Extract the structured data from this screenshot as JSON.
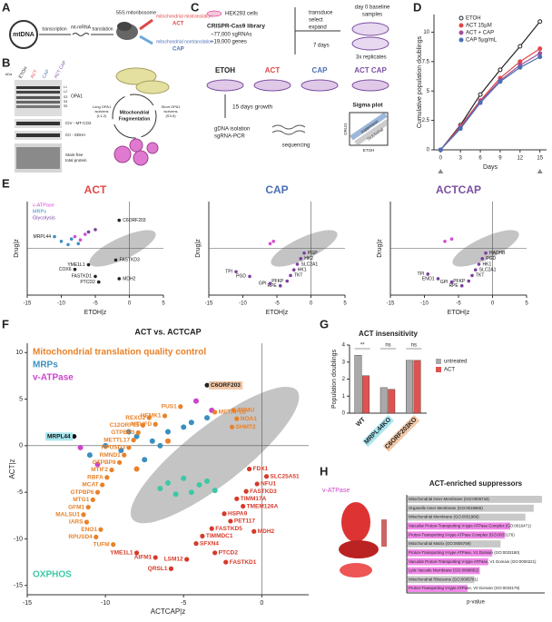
{
  "panel_labels": [
    "A",
    "B",
    "C",
    "D",
    "E",
    "F",
    "G",
    "H"
  ],
  "panel_a": {
    "mtdna": "mtDNA",
    "transcription": "transcription",
    "mrna": "mt-mRNA",
    "translation": "translation",
    "ribosome": "55S mitoribosome",
    "mistranslation": "mitochondrial mistranslation",
    "act": "ACT",
    "nontranslation": "mitochondrial nontranslation",
    "cap": "CAP"
  },
  "panel_b": {
    "lanes": [
      "ETOH",
      "ACT",
      "CAP",
      "ACT CAP"
    ],
    "kda": "kDa",
    "isoforms": [
      "L1",
      "L2",
      "S3",
      "S4",
      "S5"
    ],
    "blots": [
      "OPA1",
      "CIV - MT-CO2",
      "CII - SDHA"
    ],
    "stain": [
      "Stain-free",
      "total protein"
    ],
    "fragmentation": [
      "Mitochondrial",
      "Fragmentation"
    ],
    "long": [
      "Long OPA1",
      "isoforms",
      "(L1-2)"
    ],
    "short": [
      "Short OPA1",
      "isoforms",
      "(S3-5)"
    ]
  },
  "panel_c": {
    "cells": "HEK293 cells",
    "library": "CRISPR-Cas9 library",
    "sgrnas": "~77,000 sgRNAs",
    "genes": "~19,000 genes",
    "steps": [
      "transduce",
      "select",
      "expand"
    ],
    "days7": "7 days",
    "baseline": [
      "day 0 baseline",
      "samples"
    ],
    "replicates": "3x replicates",
    "arms": [
      "ETOH",
      "ACT",
      "CAP",
      "ACT CAP"
    ],
    "growth": "15 days growth",
    "isolation": [
      "gDNA isolation",
      "sgRNA-PCR"
    ],
    "sequencing": "sequencing",
    "sigma": "Sigma plot",
    "suppressor": "suppressor",
    "lethal": "Sick/lethal",
    "drug": "DRUG",
    "etoh": "ETOH"
  },
  "chart_data": [
    {
      "type": "line",
      "xlabel": "Days",
      "ylabel": "Cumulative population doublings",
      "x": [
        0,
        3,
        6,
        9,
        12,
        15
      ],
      "xlim": [
        -1,
        16
      ],
      "xticks": [
        0,
        3,
        6,
        9,
        12,
        15
      ],
      "ylim": [
        0,
        11.5
      ],
      "yticks": [
        0,
        2.5,
        5,
        7.5,
        10
      ],
      "legend": "upper left",
      "series": [
        {
          "name": "ETOH",
          "color": "#222222",
          "fill": "#ffffff",
          "values": [
            0,
            2.1,
            4.7,
            6.8,
            8.8,
            10.9
          ]
        },
        {
          "name": "ACT 15µM",
          "color": "#e04848",
          "values": [
            0,
            2.0,
            4.2,
            6.1,
            7.5,
            8.6
          ]
        },
        {
          "name": "ACT + CAP",
          "color": "#a0509a",
          "values": [
            0,
            1.9,
            4.1,
            5.9,
            7.2,
            8.2
          ]
        },
        {
          "name": "CAP 5µg/mL",
          "color": "#4a6fb5",
          "values": [
            0,
            1.8,
            4.0,
            5.8,
            7.0,
            7.9
          ]
        }
      ]
    },
    {
      "type": "scatter",
      "title": "ACT",
      "title_color": "#e04848",
      "xlabel": "ETOH|z",
      "ylabel": "Drug|z",
      "xlim": [
        -15,
        5
      ],
      "xticks": [
        -15,
        -10,
        -5,
        0,
        5
      ],
      "ylim": [
        -10,
        10
      ],
      "label_color": "#111111",
      "cloud_color": "#c4c4c4",
      "legend": "upper left",
      "series": [
        {
          "name": "v-ATPase",
          "color": "#d44bd4",
          "x": [
            -8,
            -7.2,
            -6.5
          ],
          "values": [
            2.5,
            1.8,
            3
          ]
        },
        {
          "name": "MRPs",
          "color": "#3a8fc1",
          "x": [
            -10,
            -9,
            -8.5,
            -7.5
          ],
          "values": [
            1.5,
            0.8,
            2,
            1
          ]
        },
        {
          "name": "Glycolysis",
          "color": "#7b3fa0",
          "x": [
            -6,
            -5
          ],
          "values": [
            3.5,
            4
          ]
        }
      ],
      "annotations": [
        {
          "text": "C6ORF203",
          "x": -1.5,
          "y": 6,
          "color": "#222222"
        },
        {
          "text": "MRPL44",
          "x": -11,
          "y": 2.5,
          "color": "#3a8fc1"
        },
        {
          "text": "FASTKD3",
          "x": -2,
          "y": -2.5,
          "color": "#222222"
        },
        {
          "text": "YME1L1",
          "x": -6,
          "y": -3.5,
          "color": "#222222"
        },
        {
          "text": "COX6",
          "x": -8,
          "y": -4.5,
          "color": "#222222"
        },
        {
          "text": "FASTKD1",
          "x": -5,
          "y": -6,
          "color": "#222222"
        },
        {
          "text": "PTCD2",
          "x": -4.5,
          "y": -7.2,
          "color": "#222222"
        },
        {
          "text": "MDH2",
          "x": -1.5,
          "y": -6.5,
          "color": "#222222"
        }
      ]
    },
    {
      "type": "scatter",
      "title": "CAP",
      "title_color": "#4a6fb5",
      "xlabel": "ETOH|z",
      "ylabel": "Drug|z",
      "xlim": [
        -15,
        5
      ],
      "xticks": [
        -15,
        -10,
        -5,
        0,
        5
      ],
      "ylim": [
        -10,
        10
      ],
      "label_color": "#111111",
      "cloud_color": "#c4c4c4",
      "series": [
        {
          "color": "#d44bd4",
          "x": [
            -6,
            -5.5
          ],
          "values": [
            1,
            1.5
          ]
        }
      ],
      "annotations": [
        {
          "text": "PGP",
          "x": -1,
          "y": -1,
          "color": "#7b3fa0"
        },
        {
          "text": "HK2",
          "x": -1.5,
          "y": -2.2,
          "color": "#7b3fa0"
        },
        {
          "text": "SLC2A1",
          "x": -2,
          "y": -3.4,
          "color": "#7b3fa0"
        },
        {
          "text": "HK1",
          "x": -2.5,
          "y": -4.6,
          "color": "#7b3fa0"
        },
        {
          "text": "TKT",
          "x": -3,
          "y": -5.8,
          "color": "#7b3fa0"
        },
        {
          "text": "PFKP",
          "x": -3.5,
          "y": -7,
          "color": "#7b3fa0"
        },
        {
          "text": "RPE",
          "x": -4.5,
          "y": -8,
          "color": "#7b3fa0"
        },
        {
          "text": "GPI",
          "x": -6,
          "y": -7.5,
          "color": "#7b3fa0"
        },
        {
          "text": "PGD",
          "x": -9,
          "y": -6,
          "color": "#7b3fa0"
        },
        {
          "text": "TPI",
          "x": -11,
          "y": -5,
          "color": "#7b3fa0"
        }
      ]
    },
    {
      "type": "scatter",
      "title": "ACTCAP",
      "title_color": "#7b4fa0",
      "xlabel": "ETOH|z",
      "ylabel": "Drug|z",
      "xlim": [
        -15,
        5
      ],
      "xticks": [
        -15,
        -10,
        -5,
        0,
        5
      ],
      "ylim": [
        -10,
        10
      ],
      "label_color": "#111111",
      "cloud_color": "#c4c4c4",
      "series": [
        {
          "color": "#d44bd4",
          "x": [
            -7,
            -6
          ],
          "values": [
            1.5,
            2
          ]
        }
      ],
      "annotations": [
        {
          "text": "HADHB",
          "x": -1,
          "y": -1,
          "color": "#7b3fa0"
        },
        {
          "text": "PGD",
          "x": -1.5,
          "y": -2.2,
          "color": "#7b3fa0"
        },
        {
          "text": "HK1",
          "x": -2,
          "y": -3.4,
          "color": "#7b3fa0"
        },
        {
          "text": "SLC2A1",
          "x": -2.5,
          "y": -4.6,
          "color": "#7b3fa0"
        },
        {
          "text": "TKT",
          "x": -3,
          "y": -5.8,
          "color": "#7b3fa0"
        },
        {
          "text": "PFKP",
          "x": -3.5,
          "y": -7,
          "color": "#7b3fa0"
        },
        {
          "text": "RPE",
          "x": -4.5,
          "y": -8,
          "color": "#7b3fa0"
        },
        {
          "text": "GPI",
          "x": -6,
          "y": -7.2,
          "color": "#7b3fa0"
        },
        {
          "text": "ENO1",
          "x": -8,
          "y": -6.5,
          "color": "#7b3fa0"
        },
        {
          "text": "TPI",
          "x": -9.5,
          "y": -5.5,
          "color": "#7b3fa0"
        }
      ]
    },
    {
      "type": "scatter",
      "title": "ACT vs. ACTCAP",
      "xlabel": "ACTCAP|z",
      "ylabel": "ACT|z",
      "xlim": [
        -15,
        3
      ],
      "xticks": [
        -15,
        -10,
        -5,
        0
      ],
      "ylim": [
        -16,
        11
      ],
      "yticks": [
        -15,
        -10,
        -5,
        0,
        5,
        10
      ],
      "cloud_color": "#c4c4c4",
      "legend": "upper left",
      "series": [
        {
          "name": "Mitochondrial translation quality control",
          "color": "#e8822a",
          "x": [
            -6,
            -8
          ],
          "values": [
            0.5,
            -2.5
          ]
        },
        {
          "name": "MRPs",
          "color": "#3a8fc1",
          "x": [
            -11,
            -10,
            -9,
            -8,
            -7,
            -6,
            -5,
            -6.5,
            -7.5,
            -8.5,
            -4.5,
            -3.5
          ],
          "values": [
            -1,
            0,
            -0.5,
            1,
            0.5,
            1.5,
            2,
            0,
            -1.5,
            1.5,
            2.5,
            3
          ]
        },
        {
          "name": "v-ATPase",
          "color": "#cc44cc",
          "x": [
            -10.5,
            -4.2,
            -3.2,
            -11.6
          ],
          "values": [
            -2,
            4.8,
            3.8,
            -0.2
          ]
        },
        {
          "name": "OXPHOS",
          "color": "#3cc9a4",
          "x": [
            -6,
            -5,
            -4.5,
            -4,
            -3.5,
            -5.5,
            -6.5,
            -3
          ],
          "values": [
            -4,
            -3.5,
            -5,
            -4.2,
            -3.8,
            -5.2,
            -4.6,
            -4.8
          ]
        }
      ],
      "annotations": [
        {
          "text": "C6ORF203",
          "x": -3.5,
          "y": 6.5,
          "color": "#222222",
          "box_color": "#f2c8a8"
        },
        {
          "text": "HEMK1",
          "x": -6.2,
          "y": 3.2,
          "color": "#e8822a"
        },
        {
          "text": "PUS1",
          "x": -5.2,
          "y": 4.2,
          "color": "#e8822a"
        },
        {
          "text": "METAP1D",
          "x": -3,
          "y": 3.6,
          "color": "#e8822a"
        },
        {
          "text": "TRMU",
          "x": -1.8,
          "y": 3.8,
          "color": "#e8822a"
        },
        {
          "text": "NOA1",
          "x": -1.6,
          "y": 2.9,
          "color": "#e8822a"
        },
        {
          "text": "SHMT2",
          "x": -1.9,
          "y": 2,
          "color": "#e8822a"
        },
        {
          "text": "MTHFD",
          "x": -6.8,
          "y": 2.3,
          "color": "#e8822a"
        },
        {
          "text": "REXO2",
          "x": -7.2,
          "y": 3.0,
          "color": "#e8822a"
        },
        {
          "text": "C12ORF65",
          "x": -7.6,
          "y": 2.2,
          "color": "#e8822a"
        },
        {
          "text": "GTPBP3",
          "x": -7.9,
          "y": 1.4,
          "color": "#e8822a"
        },
        {
          "text": "METTL17",
          "x": -8.2,
          "y": 0.6,
          "color": "#e8822a"
        },
        {
          "text": "RPUSD3",
          "x": -8.5,
          "y": -0.2,
          "color": "#e8822a"
        },
        {
          "text": "RMND1",
          "x": -8.8,
          "y": -1.0,
          "color": "#e8822a"
        },
        {
          "text": "GTPBP8",
          "x": -9.1,
          "y": -1.8,
          "color": "#e8822a"
        },
        {
          "text": "MRPL44",
          "x": -12,
          "y": 1,
          "color": "#111111",
          "box_color": "#a8e6f0"
        },
        {
          "text": "MTIF2",
          "x": -9.6,
          "y": -2.6,
          "color": "#e8822a"
        },
        {
          "text": "RBFA",
          "x": -9.9,
          "y": -3.4,
          "color": "#e8822a"
        },
        {
          "text": "MCAT",
          "x": -10.2,
          "y": -4.2,
          "color": "#e8822a"
        },
        {
          "text": "GTPBP6",
          "x": -10.5,
          "y": -5.0,
          "color": "#e8822a"
        },
        {
          "text": "MTG1",
          "x": -10.8,
          "y": -5.8,
          "color": "#e8822a"
        },
        {
          "text": "GFM1",
          "x": -11.1,
          "y": -6.6,
          "color": "#e8822a"
        },
        {
          "text": "MALSU1",
          "x": -11.4,
          "y": -7.4,
          "color": "#e8822a"
        },
        {
          "text": "IARS",
          "x": -11.2,
          "y": -8.2,
          "color": "#e8822a"
        },
        {
          "text": "ENO1",
          "x": -10.3,
          "y": -9.0,
          "color": "#e8822a"
        },
        {
          "text": "RPUSD4",
          "x": -10.6,
          "y": -9.8,
          "color": "#e8822a"
        },
        {
          "text": "TUFM",
          "x": -9.5,
          "y": -10.6,
          "color": "#e8822a"
        },
        {
          "text": "FDX1",
          "x": -0.8,
          "y": -2.5,
          "color": "#d63a2a"
        },
        {
          "text": "SLC25A51",
          "x": 0.3,
          "y": -3.3,
          "color": "#d63a2a"
        },
        {
          "text": "NFU1",
          "x": -0.3,
          "y": -4.1,
          "color": "#d63a2a"
        },
        {
          "text": "FASTKD3",
          "x": -1.0,
          "y": -4.9,
          "color": "#d63a2a"
        },
        {
          "text": "TIMM17A",
          "x": -1.6,
          "y": -5.7,
          "color": "#d63a2a"
        },
        {
          "text": "TMEM126A",
          "x": -1.2,
          "y": -6.5,
          "color": "#d63a2a"
        },
        {
          "text": "HSPA9",
          "x": -2.4,
          "y": -7.3,
          "color": "#d63a2a"
        },
        {
          "text": "PET117",
          "x": -2.0,
          "y": -8.1,
          "color": "#d63a2a"
        },
        {
          "text": "MDH2",
          "x": -0.5,
          "y": -9.2,
          "color": "#d63a2a"
        },
        {
          "text": "FASTKD5",
          "x": -3.2,
          "y": -8.9,
          "color": "#d63a2a"
        },
        {
          "text": "TIMMDC1",
          "x": -3.8,
          "y": -9.7,
          "color": "#d63a2a"
        },
        {
          "text": "SFXN4",
          "x": -4.2,
          "y": -10.5,
          "color": "#d63a2a"
        },
        {
          "text": "PTCD2",
          "x": -3.0,
          "y": -11.5,
          "color": "#d63a2a"
        },
        {
          "text": "FASTKD1",
          "x": -2.3,
          "y": -12.5,
          "color": "#d63a2a"
        },
        {
          "text": "LSM12",
          "x": -4.8,
          "y": -12.2,
          "color": "#d63a2a"
        },
        {
          "text": "QRSL1",
          "x": -5.8,
          "y": -13.2,
          "color": "#d63a2a"
        },
        {
          "text": "AIFM1",
          "x": -6.8,
          "y": -12,
          "color": "#d63a2a"
        },
        {
          "text": "YME1L1",
          "x": -8,
          "y": -11.5,
          "color": "#d63a2a"
        }
      ]
    },
    {
      "type": "grouped_bar",
      "title": "ACT insensitivity",
      "ylabel": "Population doublings",
      "categories": [
        "WT",
        "MRPL44KO",
        "C6ORF203KO"
      ],
      "label_colors": [
        "#ffffff",
        "#a8e6f0",
        "#f2c8a8"
      ],
      "ylim": [
        0,
        4
      ],
      "yticks": [
        0,
        1,
        2,
        3,
        4
      ],
      "legend": "right",
      "series": [
        {
          "name": "untreated",
          "color": "#a9a9a9",
          "values": [
            3.4,
            1.5,
            3.1
          ]
        },
        {
          "name": "ACT",
          "color": "#e0524f",
          "values": [
            2.2,
            1.4,
            3.1
          ]
        }
      ],
      "significance": [
        "**",
        "ns",
        "ns"
      ]
    },
    {
      "type": "hbar",
      "title": "ACT-enriched suppressors",
      "xlabel": "p-value",
      "structure_label": "v-ATPase",
      "xlim": [
        0,
        10
      ],
      "categories": [
        "Mitochondrial Inner Membrane (GO:0005743)",
        "Organelle Inner Membrane (GO:0019866)",
        "Mitochondrial Membrane (GO:0031966)",
        "Vacuolar Proton-Transporting V-type ATPase Complex (GO:0016471)",
        "Proton-Transporting V-type ATPase Complex (GO:0033176)",
        "Mitochondrial Matrix (GO:0005759)",
        "Proton-Transporting V-type ATPase, V1 Domain (GO:0033180)",
        "Vacuolar Proton-Transporting V-type ATPase, V1 Domain (GO:0000221)",
        "Lytic Vacuole Membrane (GO:0098852)",
        "Mitochondrial Ribosome (GO:0005761)",
        "Proton-Transporting V-type ATPase, V0 Domain (GO:0033179)"
      ],
      "values": [
        9.8,
        9.2,
        8.6,
        7.5,
        7.1,
        6.8,
        6.2,
        5.9,
        5.3,
        4.9,
        4.4
      ],
      "colors": [
        "#c8c8c8",
        "#c8c8c8",
        "#c8c8c8",
        "#f08ae8",
        "#f08ae8",
        "#c8c8c8",
        "#f08ae8",
        "#f08ae8",
        "#f08ae8",
        "#c8c8c8",
        "#f08ae8"
      ]
    }
  ]
}
